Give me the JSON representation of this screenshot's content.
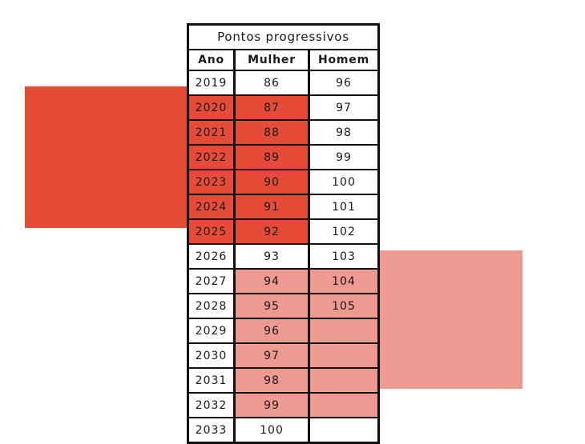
{
  "table": {
    "title": "Pontos progressivos",
    "headers": {
      "ano": "Ano",
      "mulher": "Mulher",
      "homem": "Homem"
    },
    "rows": [
      {
        "ano": "2019",
        "mulher": "86",
        "homem": "96"
      },
      {
        "ano": "2020",
        "mulher": "87",
        "homem": "97"
      },
      {
        "ano": "2021",
        "mulher": "88",
        "homem": "98"
      },
      {
        "ano": "2022",
        "mulher": "89",
        "homem": "99"
      },
      {
        "ano": "2023",
        "mulher": "90",
        "homem": "100"
      },
      {
        "ano": "2024",
        "mulher": "91",
        "homem": "101"
      },
      {
        "ano": "2025",
        "mulher": "92",
        "homem": "102"
      },
      {
        "ano": "2026",
        "mulher": "93",
        "homem": "103"
      },
      {
        "ano": "2027",
        "mulher": "94",
        "homem": "104"
      },
      {
        "ano": "2028",
        "mulher": "95",
        "homem": "105"
      },
      {
        "ano": "2029",
        "mulher": "96",
        "homem": ""
      },
      {
        "ano": "2030",
        "mulher": "97",
        "homem": ""
      },
      {
        "ano": "2031",
        "mulher": "98",
        "homem": ""
      },
      {
        "ano": "2032",
        "mulher": "99",
        "homem": ""
      },
      {
        "ano": "2033",
        "mulher": "100",
        "homem": ""
      }
    ]
  },
  "colors": {
    "highlight_red": "#e54b37",
    "highlight_pink": "#ee9a90",
    "border": "#111111"
  }
}
